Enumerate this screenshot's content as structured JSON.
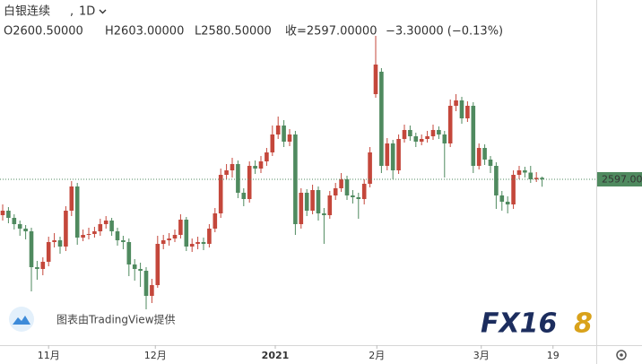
{
  "chart_data": {
    "type": "candlestick",
    "symbol": "白银连续",
    "interval": "1D",
    "legend_labels": [
      "O2600.50000",
      "H2603.00000",
      "L2580.50000",
      "收=2597.00000",
      "−3.30000 (−0.13%)"
    ],
    "watermark": "图表由TradingView提供",
    "logo": [
      "FX16",
      "8"
    ],
    "up_color": "#c4473b",
    "down_color": "#4f8a5f",
    "ylim": [
      2227,
      2997
    ],
    "xlim": [
      -0.47,
      103.44
    ],
    "xticks": [
      {
        "value": 8,
        "label": "11月"
      },
      {
        "value": 26.6,
        "label": "12月"
      },
      {
        "value": 47.5,
        "label": "2021"
      },
      {
        "value": 65.2,
        "label": "2月"
      },
      {
        "value": 83.4,
        "label": "3月"
      },
      {
        "value": 95.9,
        "label": "19"
      }
    ],
    "last_price": {
      "value": 2597,
      "label": "2597.00"
    },
    "open": [
      2517,
      2527,
      2511,
      2497,
      2487,
      2481,
      2401,
      2397,
      2413,
      2457,
      2461,
      2447,
      2527,
      2581,
      2467,
      2473,
      2475,
      2481,
      2497,
      2505,
      2481,
      2461,
      2457,
      2407,
      2397,
      2393,
      2337,
      2361,
      2453,
      2461,
      2465,
      2473,
      2507,
      2447,
      2453,
      2457,
      2453,
      2487,
      2521,
      2607,
      2617,
      2631,
      2567,
      2553,
      2627,
      2621,
      2637,
      2657,
      2697,
      2717,
      2681,
      2697,
      2497,
      2567,
      2527,
      2573,
      2521,
      2517,
      2561,
      2577,
      2597,
      2561,
      2557,
      2553,
      2587,
      2787,
      2837,
      2627,
      2677,
      2617,
      2687,
      2707,
      2693,
      2681,
      2687,
      2693,
      2707,
      2697,
      2677,
      2761,
      2773,
      2733,
      2761,
      2627,
      2667,
      2641,
      2627,
      2561,
      2547,
      2541,
      2607,
      2617,
      2612,
      2597,
      2600.5
    ],
    "high": [
      2541,
      2535,
      2519,
      2505,
      2495,
      2489,
      2415,
      2423,
      2469,
      2477,
      2469,
      2537,
      2593,
      2589,
      2485,
      2489,
      2491,
      2509,
      2515,
      2511,
      2489,
      2471,
      2465,
      2419,
      2411,
      2401,
      2375,
      2471,
      2473,
      2477,
      2485,
      2519,
      2513,
      2465,
      2469,
      2467,
      2497,
      2533,
      2621,
      2631,
      2645,
      2639,
      2577,
      2637,
      2639,
      2649,
      2667,
      2717,
      2737,
      2729,
      2709,
      2705,
      2577,
      2575,
      2585,
      2581,
      2533,
      2571,
      2589,
      2611,
      2605,
      2573,
      2567,
      2597,
      2669,
      2917,
      2845,
      2689,
      2685,
      2697,
      2719,
      2717,
      2701,
      2697,
      2705,
      2719,
      2715,
      2705,
      2775,
      2787,
      2781,
      2771,
      2769,
      2677,
      2675,
      2649,
      2635,
      2571,
      2559,
      2617,
      2627,
      2625,
      2627,
      2613,
      2603
    ],
    "low": [
      2505,
      2499,
      2485,
      2471,
      2463,
      2347,
      2373,
      2383,
      2403,
      2445,
      2431,
      2437,
      2515,
      2451,
      2459,
      2463,
      2467,
      2471,
      2487,
      2471,
      2449,
      2441,
      2381,
      2371,
      2357,
      2307,
      2321,
      2355,
      2441,
      2449,
      2457,
      2465,
      2437,
      2435,
      2441,
      2439,
      2445,
      2479,
      2511,
      2597,
      2601,
      2555,
      2537,
      2545,
      2609,
      2611,
      2627,
      2649,
      2687,
      2669,
      2671,
      2473,
      2487,
      2515,
      2519,
      2505,
      2453,
      2509,
      2551,
      2569,
      2551,
      2543,
      2509,
      2541,
      2579,
      2779,
      2611,
      2617,
      2597,
      2609,
      2679,
      2683,
      2669,
      2673,
      2679,
      2685,
      2687,
      2601,
      2669,
      2749,
      2721,
      2725,
      2611,
      2619,
      2629,
      2611,
      2531,
      2527,
      2521,
      2531,
      2597,
      2601,
      2589,
      2591,
      2580.5
    ],
    "close": [
      2527,
      2511,
      2497,
      2487,
      2481,
      2401,
      2397,
      2413,
      2457,
      2461,
      2447,
      2527,
      2581,
      2467,
      2473,
      2475,
      2481,
      2497,
      2505,
      2481,
      2461,
      2457,
      2407,
      2397,
      2393,
      2337,
      2361,
      2453,
      2461,
      2465,
      2473,
      2507,
      2447,
      2453,
      2457,
      2453,
      2487,
      2521,
      2607,
      2617,
      2631,
      2567,
      2553,
      2627,
      2621,
      2637,
      2657,
      2697,
      2717,
      2681,
      2697,
      2497,
      2567,
      2527,
      2573,
      2521,
      2517,
      2561,
      2577,
      2597,
      2561,
      2557,
      2553,
      2587,
      2657,
      2853,
      2627,
      2677,
      2617,
      2687,
      2707,
      2693,
      2681,
      2687,
      2693,
      2707,
      2697,
      2677,
      2761,
      2773,
      2733,
      2761,
      2627,
      2667,
      2641,
      2627,
      2561,
      2547,
      2541,
      2607,
      2617,
      2612,
      2597,
      2600.3,
      2597
    ]
  }
}
